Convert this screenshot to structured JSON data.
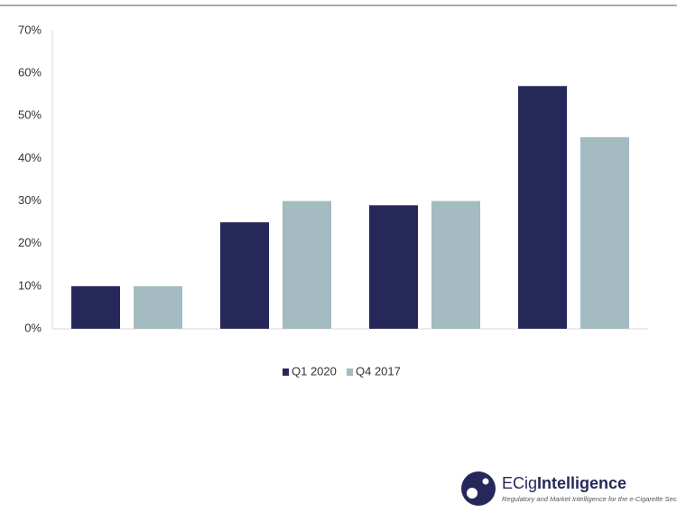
{
  "chart_data": {
    "type": "bar",
    "categories": [
      null,
      null,
      null,
      null
    ],
    "series": [
      {
        "name": "Q1 2020",
        "color": "#27285a",
        "values": [
          10,
          25,
          29,
          57
        ]
      },
      {
        "name": "Q4 2017",
        "color": "#a3bbc1",
        "values": [
          10,
          30,
          30,
          45
        ]
      }
    ],
    "ylim": [
      0,
      70
    ],
    "yticks": [
      {
        "value": 0,
        "label": "0%"
      },
      {
        "value": 10,
        "label": "10%"
      },
      {
        "value": 20,
        "label": "20%"
      },
      {
        "value": 30,
        "label": "30%"
      },
      {
        "value": 40,
        "label": "40%"
      },
      {
        "value": 50,
        "label": "50%"
      },
      {
        "value": 60,
        "label": "60%"
      },
      {
        "value": 70,
        "label": "70%"
      }
    ],
    "grid": false,
    "legend": "bottom"
  },
  "logo": {
    "prefix": "ECig",
    "name": "Intelligence",
    "tagline": "Regulatory and Market Intelligence for the e-Cigarette Sector"
  }
}
